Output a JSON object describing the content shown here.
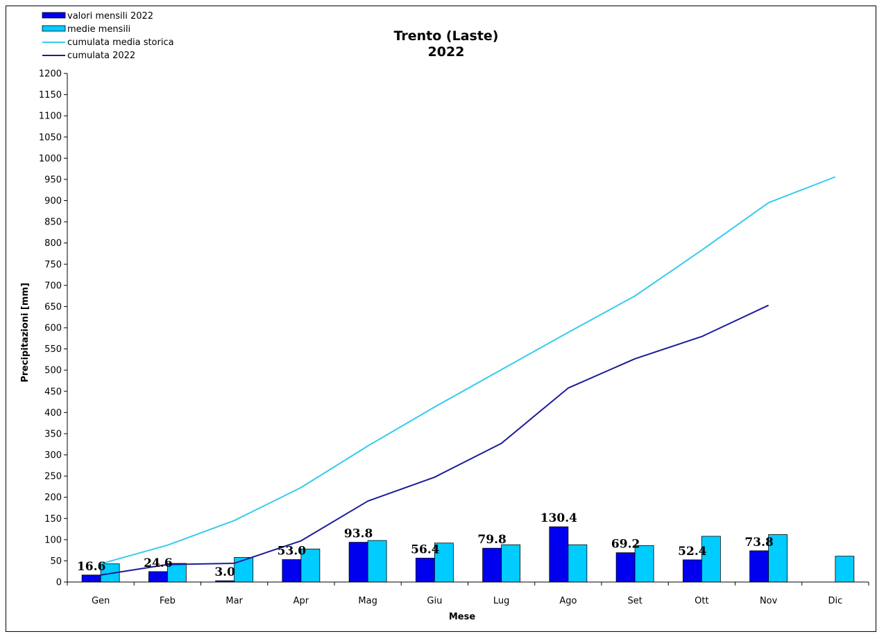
{
  "chart_data": {
    "type": "bar",
    "title": "Trento (Laste)",
    "subtitle": "2022",
    "xlabel": "Mese",
    "ylabel": "Precipitazioni [mm]",
    "ylim": [
      0,
      1200
    ],
    "ytick_step": 50,
    "grid": false,
    "legend_position": "top-left",
    "categories": [
      "Gen",
      "Feb",
      "Mar",
      "Apr",
      "Mag",
      "Giu",
      "Lug",
      "Ago",
      "Set",
      "Ott",
      "Nov",
      "Dic"
    ],
    "series": [
      {
        "name": "valori mensili 2022",
        "kind": "bar",
        "color": "#0000ee",
        "values": [
          16.6,
          24.6,
          3.0,
          53.0,
          93.8,
          56.4,
          79.8,
          130.4,
          69.2,
          52.4,
          73.8,
          null
        ],
        "labels": [
          "16.6",
          "24.6",
          "3.0",
          "53.0",
          "93.8",
          "56.4",
          "79.8",
          "130.4",
          "69.2",
          "52.4",
          "73.8",
          ""
        ]
      },
      {
        "name": "medie mensili",
        "kind": "bar",
        "color": "#00ccff",
        "values": [
          43,
          44,
          58,
          78,
          98,
          92,
          88,
          88,
          86,
          108,
          112,
          61
        ]
      },
      {
        "name": "cumulata media storica",
        "kind": "line",
        "color": "#33ccee",
        "values": [
          43,
          87,
          145,
          223,
          321,
          413,
          501,
          589,
          675,
          783,
          895,
          956
        ]
      },
      {
        "name": "cumulata 2022",
        "kind": "line",
        "color": "#1a1a99",
        "values": [
          16.6,
          41.2,
          44.2,
          97.2,
          191.0,
          247.4,
          327.2,
          457.6,
          526.8,
          579.2,
          653.0,
          null
        ]
      }
    ]
  }
}
